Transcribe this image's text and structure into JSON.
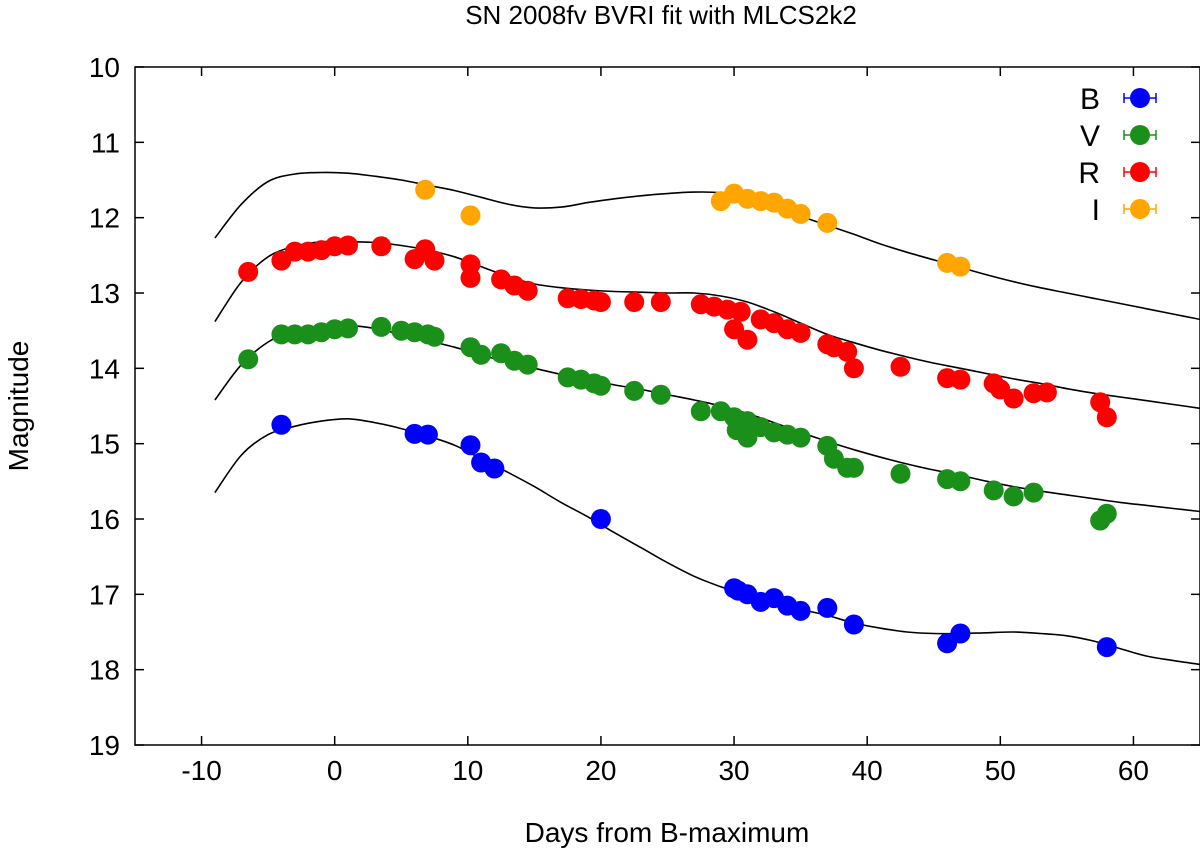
{
  "chart_data": {
    "type": "scatter",
    "title": "SN 2008fv BVRI fit with MLCS2k2",
    "xlabel": "Days from B-maximum",
    "ylabel": "Magnitude",
    "xlim": [
      -15,
      65
    ],
    "ylim": [
      19,
      10
    ],
    "y_inverted": true,
    "grid": false,
    "legend_position": "top-right",
    "x_ticks": [
      -10,
      0,
      10,
      20,
      30,
      40,
      50,
      60
    ],
    "x_tick_labels": [
      "-10",
      "0",
      "10",
      "20",
      "30",
      "40",
      "50",
      "60"
    ],
    "y_ticks": [
      10,
      11,
      12,
      13,
      14,
      15,
      16,
      17,
      18,
      19
    ],
    "y_tick_labels": [
      "10",
      "11",
      "12",
      "13",
      "14",
      "15",
      "16",
      "17",
      "18",
      "19"
    ],
    "series": [
      {
        "name": "B",
        "color": "#0000ff",
        "points": [
          [
            -4,
            14.75
          ],
          [
            6,
            14.87
          ],
          [
            7,
            14.88
          ],
          [
            10.2,
            15.02
          ],
          [
            11,
            15.25
          ],
          [
            12,
            15.33
          ],
          [
            20,
            16.0
          ],
          [
            30,
            16.92
          ],
          [
            30.3,
            16.95
          ],
          [
            31,
            17.0
          ],
          [
            32,
            17.1
          ],
          [
            33,
            17.05
          ],
          [
            34,
            17.15
          ],
          [
            35,
            17.22
          ],
          [
            37,
            17.18
          ],
          [
            39,
            17.4
          ],
          [
            46,
            17.65
          ],
          [
            47,
            17.52
          ],
          [
            58,
            17.7
          ]
        ],
        "model": [
          [
            -9,
            15.65
          ],
          [
            -7,
            15.15
          ],
          [
            -5,
            14.88
          ],
          [
            -3,
            14.77
          ],
          [
            -1,
            14.7
          ],
          [
            1,
            14.67
          ],
          [
            3,
            14.72
          ],
          [
            5,
            14.8
          ],
          [
            7,
            14.9
          ],
          [
            9,
            15.02
          ],
          [
            11,
            15.2
          ],
          [
            13,
            15.38
          ],
          [
            15,
            15.57
          ],
          [
            17,
            15.78
          ],
          [
            19,
            15.97
          ],
          [
            21,
            16.18
          ],
          [
            23,
            16.38
          ],
          [
            25,
            16.58
          ],
          [
            27,
            16.76
          ],
          [
            29,
            16.9
          ],
          [
            31,
            17.02
          ],
          [
            33,
            17.12
          ],
          [
            35,
            17.2
          ],
          [
            37,
            17.28
          ],
          [
            39,
            17.38
          ],
          [
            41,
            17.45
          ],
          [
            43,
            17.5
          ],
          [
            45,
            17.52
          ],
          [
            47,
            17.52
          ],
          [
            49,
            17.51
          ],
          [
            51,
            17.5
          ],
          [
            53,
            17.52
          ],
          [
            55,
            17.55
          ],
          [
            57,
            17.62
          ],
          [
            59,
            17.72
          ],
          [
            61,
            17.82
          ],
          [
            63,
            17.88
          ],
          [
            65,
            17.93
          ]
        ]
      },
      {
        "name": "V",
        "color": "#1a8f1a",
        "points": [
          [
            -6.5,
            13.88
          ],
          [
            -4,
            13.55
          ],
          [
            -3,
            13.55
          ],
          [
            -2,
            13.55
          ],
          [
            -1,
            13.52
          ],
          [
            0,
            13.48
          ],
          [
            1,
            13.47
          ],
          [
            3.5,
            13.45
          ],
          [
            5,
            13.5
          ],
          [
            6,
            13.52
          ],
          [
            7,
            13.55
          ],
          [
            7.5,
            13.58
          ],
          [
            10.2,
            13.72
          ],
          [
            11,
            13.82
          ],
          [
            12.5,
            13.8
          ],
          [
            13.5,
            13.9
          ],
          [
            14.5,
            13.95
          ],
          [
            17.5,
            14.12
          ],
          [
            18.5,
            14.15
          ],
          [
            19.5,
            14.2
          ],
          [
            20,
            14.23
          ],
          [
            22.5,
            14.3
          ],
          [
            24.5,
            14.35
          ],
          [
            27.5,
            14.57
          ],
          [
            29,
            14.57
          ],
          [
            30,
            14.65
          ],
          [
            30.2,
            14.82
          ],
          [
            31,
            14.7
          ],
          [
            31,
            14.92
          ],
          [
            32,
            14.78
          ],
          [
            33,
            14.85
          ],
          [
            34,
            14.88
          ],
          [
            35,
            14.92
          ],
          [
            37,
            15.03
          ],
          [
            37.5,
            15.2
          ],
          [
            38.5,
            15.32
          ],
          [
            39,
            15.32
          ],
          [
            42.5,
            15.4
          ],
          [
            46,
            15.47
          ],
          [
            47,
            15.5
          ],
          [
            49.5,
            15.62
          ],
          [
            51,
            15.7
          ],
          [
            52.5,
            15.65
          ],
          [
            57.5,
            16.02
          ],
          [
            58,
            15.93
          ]
        ],
        "model": [
          [
            -9,
            14.42
          ],
          [
            -7,
            13.95
          ],
          [
            -5,
            13.65
          ],
          [
            -3,
            13.5
          ],
          [
            -1,
            13.44
          ],
          [
            1,
            13.43
          ],
          [
            3,
            13.47
          ],
          [
            5,
            13.55
          ],
          [
            7,
            13.63
          ],
          [
            9,
            13.72
          ],
          [
            11,
            13.82
          ],
          [
            13,
            13.92
          ],
          [
            15,
            14.0
          ],
          [
            17,
            14.08
          ],
          [
            19,
            14.15
          ],
          [
            21,
            14.22
          ],
          [
            23,
            14.28
          ],
          [
            25,
            14.35
          ],
          [
            27,
            14.42
          ],
          [
            29,
            14.5
          ],
          [
            31,
            14.6
          ],
          [
            33,
            14.72
          ],
          [
            35,
            14.85
          ],
          [
            37,
            14.97
          ],
          [
            39,
            15.08
          ],
          [
            41,
            15.18
          ],
          [
            43,
            15.27
          ],
          [
            45,
            15.35
          ],
          [
            47,
            15.42
          ],
          [
            49,
            15.5
          ],
          [
            51,
            15.57
          ],
          [
            53,
            15.63
          ],
          [
            55,
            15.68
          ],
          [
            57,
            15.73
          ],
          [
            59,
            15.78
          ],
          [
            61,
            15.82
          ],
          [
            63,
            15.86
          ],
          [
            65,
            15.9
          ]
        ]
      },
      {
        "name": "R",
        "color": "#ff0000",
        "points": [
          [
            -6.5,
            12.72
          ],
          [
            -4,
            12.57
          ],
          [
            -3,
            12.45
          ],
          [
            -2,
            12.45
          ],
          [
            -1,
            12.43
          ],
          [
            0,
            12.38
          ],
          [
            1,
            12.37
          ],
          [
            3.5,
            12.38
          ],
          [
            6,
            12.55
          ],
          [
            6.8,
            12.42
          ],
          [
            7.5,
            12.57
          ],
          [
            10.2,
            12.62
          ],
          [
            10.2,
            12.8
          ],
          [
            12.5,
            12.82
          ],
          [
            13.5,
            12.9
          ],
          [
            14.5,
            12.97
          ],
          [
            17.5,
            13.07
          ],
          [
            18.5,
            13.08
          ],
          [
            19.5,
            13.1
          ],
          [
            20,
            13.12
          ],
          [
            22.5,
            13.12
          ],
          [
            24.5,
            13.12
          ],
          [
            27.5,
            13.15
          ],
          [
            28.5,
            13.18
          ],
          [
            29.5,
            13.22
          ],
          [
            30.5,
            13.25
          ],
          [
            30,
            13.48
          ],
          [
            31,
            13.62
          ],
          [
            32,
            13.35
          ],
          [
            33,
            13.4
          ],
          [
            34,
            13.48
          ],
          [
            35,
            13.53
          ],
          [
            37,
            13.68
          ],
          [
            37.5,
            13.72
          ],
          [
            38.5,
            13.78
          ],
          [
            39,
            14.0
          ],
          [
            42.5,
            13.98
          ],
          [
            46,
            14.13
          ],
          [
            47,
            14.15
          ],
          [
            49.5,
            14.2
          ],
          [
            50,
            14.28
          ],
          [
            51,
            14.4
          ],
          [
            52.5,
            14.33
          ],
          [
            53.5,
            14.32
          ],
          [
            57.5,
            14.45
          ],
          [
            58,
            14.65
          ]
        ],
        "model": [
          [
            -9,
            13.38
          ],
          [
            -7,
            12.85
          ],
          [
            -5,
            12.52
          ],
          [
            -3,
            12.38
          ],
          [
            -1,
            12.32
          ],
          [
            1,
            12.32
          ],
          [
            3,
            12.33
          ],
          [
            5,
            12.37
          ],
          [
            7,
            12.43
          ],
          [
            9,
            12.52
          ],
          [
            11,
            12.65
          ],
          [
            13,
            12.78
          ],
          [
            15,
            12.88
          ],
          [
            17,
            12.93
          ],
          [
            19,
            12.96
          ],
          [
            21,
            12.98
          ],
          [
            23,
            12.99
          ],
          [
            25,
            13.0
          ],
          [
            27,
            13.0
          ],
          [
            29,
            13.04
          ],
          [
            31,
            13.12
          ],
          [
            33,
            13.25
          ],
          [
            35,
            13.4
          ],
          [
            37,
            13.55
          ],
          [
            39,
            13.66
          ],
          [
            41,
            13.76
          ],
          [
            43,
            13.85
          ],
          [
            45,
            13.93
          ],
          [
            47,
            14.0
          ],
          [
            49,
            14.07
          ],
          [
            51,
            14.14
          ],
          [
            53,
            14.2
          ],
          [
            55,
            14.27
          ],
          [
            57,
            14.33
          ],
          [
            59,
            14.38
          ],
          [
            61,
            14.43
          ],
          [
            63,
            14.48
          ],
          [
            65,
            14.53
          ]
        ]
      },
      {
        "name": "I",
        "color": "#ffa500",
        "points": [
          [
            6.8,
            11.63
          ],
          [
            10.2,
            11.97
          ],
          [
            29,
            11.78
          ],
          [
            30,
            11.68
          ],
          [
            31,
            11.75
          ],
          [
            32,
            11.78
          ],
          [
            33,
            11.8
          ],
          [
            34,
            11.88
          ],
          [
            35,
            11.95
          ],
          [
            37,
            12.07
          ],
          [
            46,
            12.6
          ],
          [
            47,
            12.65
          ]
        ],
        "model": [
          [
            -9,
            12.27
          ],
          [
            -7,
            11.82
          ],
          [
            -5,
            11.52
          ],
          [
            -3,
            11.42
          ],
          [
            -1,
            11.4
          ],
          [
            1,
            11.41
          ],
          [
            3,
            11.45
          ],
          [
            5,
            11.5
          ],
          [
            7,
            11.57
          ],
          [
            9,
            11.64
          ],
          [
            11,
            11.73
          ],
          [
            13,
            11.82
          ],
          [
            15,
            11.87
          ],
          [
            17,
            11.86
          ],
          [
            19,
            11.8
          ],
          [
            21,
            11.75
          ],
          [
            23,
            11.71
          ],
          [
            25,
            11.68
          ],
          [
            27,
            11.66
          ],
          [
            29,
            11.67
          ],
          [
            31,
            11.74
          ],
          [
            33,
            11.85
          ],
          [
            35,
            11.98
          ],
          [
            37,
            12.1
          ],
          [
            39,
            12.22
          ],
          [
            41,
            12.35
          ],
          [
            43,
            12.46
          ],
          [
            45,
            12.56
          ],
          [
            47,
            12.66
          ],
          [
            49,
            12.76
          ],
          [
            51,
            12.85
          ],
          [
            53,
            12.93
          ],
          [
            55,
            13.0
          ],
          [
            57,
            13.07
          ],
          [
            59,
            13.14
          ],
          [
            61,
            13.21
          ],
          [
            63,
            13.28
          ],
          [
            65,
            13.35
          ]
        ]
      }
    ]
  }
}
